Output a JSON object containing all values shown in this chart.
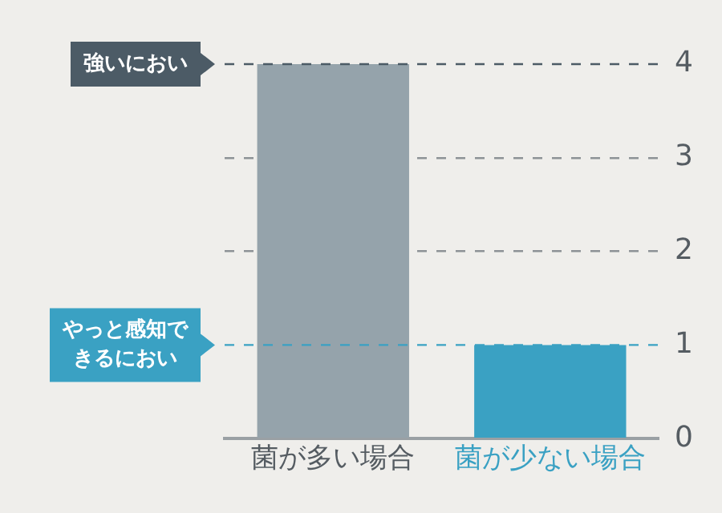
{
  "chart_data": {
    "type": "bar",
    "categories": [
      "菌が多い場合",
      "菌が少ない場合"
    ],
    "values": [
      4,
      1
    ],
    "colors": [
      "#95a3ab",
      "#3aa1c3"
    ],
    "ylim": [
      0,
      4
    ],
    "yticks": [
      0,
      1,
      2,
      3,
      4
    ],
    "grid": "y",
    "ref_lines": [
      {
        "axis": "y",
        "value": 4,
        "label": "強いにおい",
        "color": "#4c5b66",
        "line_style": "dashed"
      },
      {
        "axis": "y",
        "value": 1,
        "label": "やっと感知できるにおい",
        "color": "#3aa1c3",
        "line_style": "dashed"
      }
    ]
  }
}
